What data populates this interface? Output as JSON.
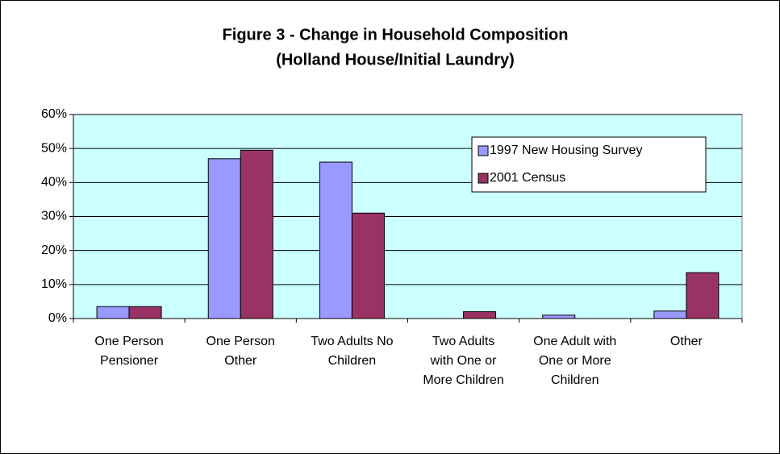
{
  "chart_data": {
    "type": "bar",
    "title": [
      "Figure 3 - Change in Household Composition",
      "(Holland House/Initial Laundry)"
    ],
    "categories": [
      "One Person Pensioner",
      "One Person Other",
      "Two Adults No Children",
      "Two Adults with One or More Children",
      "One Adult with One or More Children",
      "Other"
    ],
    "series": [
      {
        "name": "1997 New Housing Survey",
        "color": "#9999ff",
        "values": [
          3.5,
          47,
          46,
          0,
          1,
          2.2
        ]
      },
      {
        "name": "2001 Census",
        "color": "#993366",
        "values": [
          3.5,
          49.5,
          31,
          2,
          0,
          13.5
        ]
      }
    ],
    "ylim": [
      0,
      60
    ],
    "yticks": [
      {
        "value": 0,
        "label": "0%"
      },
      {
        "value": 10,
        "label": "10%"
      },
      {
        "value": 20,
        "label": "20%"
      },
      {
        "value": 30,
        "label": "30%"
      },
      {
        "value": 40,
        "label": "40%"
      },
      {
        "value": 50,
        "label": "50%"
      },
      {
        "value": 60,
        "label": "60%"
      }
    ],
    "grid": true,
    "legend": "upper right",
    "plot_background": "#ccffff"
  }
}
